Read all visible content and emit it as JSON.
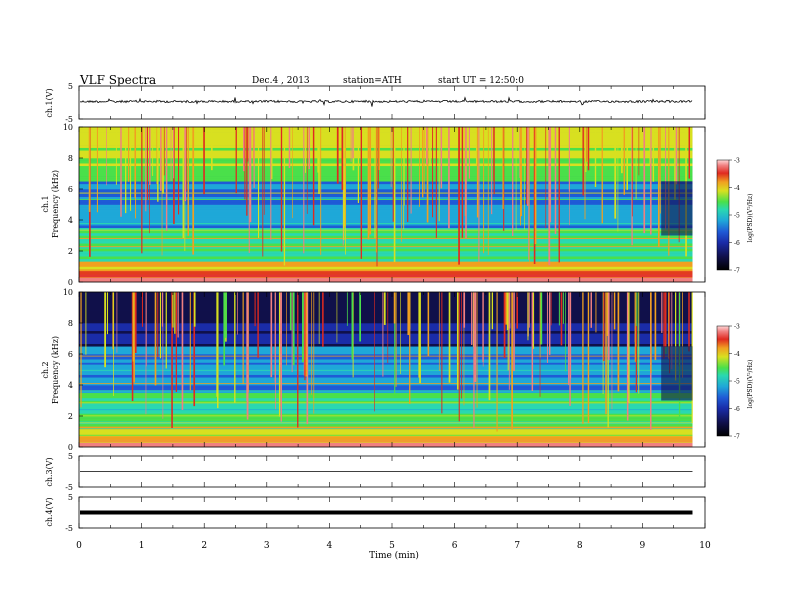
{
  "header": {
    "title": "VLF  Spectra",
    "date": "Dec.4  , 2013",
    "station": "station=ATH",
    "start": "start  UT  =    12:50:0"
  },
  "chart_data": [
    {
      "type": "line",
      "panel": "ch1-waveform",
      "ylabel": "ch.1(V)",
      "yticks": [
        "5",
        "-5"
      ],
      "ylim": [
        -5,
        5
      ],
      "description_values": "noisy trace near +0.3 V with spikes",
      "color": "#000000"
    },
    {
      "type": "heatmap",
      "panel": "ch1-spectrogram",
      "ylabel_top": "ch.1",
      "ylabel": "Frequency  (kHz)",
      "yticks": [
        "0",
        "2",
        "4",
        "6",
        "8",
        "10"
      ],
      "ylim": [
        0,
        10
      ],
      "xlim": [
        0,
        10
      ],
      "data_end_min": 9.8,
      "colorbar": {
        "label": "log(PSD)(V²/Hz)",
        "ticks": [
          "-3",
          "-4",
          "-5",
          "-6",
          "-7"
        ],
        "range": [
          -7,
          -3
        ]
      }
    },
    {
      "type": "heatmap",
      "panel": "ch2-spectrogram",
      "ylabel_top": "ch.2",
      "ylabel": "Frequency  (kHz)",
      "yticks": [
        "0",
        "2",
        "4",
        "6",
        "8",
        "10"
      ],
      "ylim": [
        0,
        10
      ],
      "xlim": [
        0,
        10
      ],
      "data_end_min": 9.8,
      "colorbar": {
        "label": "log(PSD)(V²/Hz)",
        "ticks": [
          "-3",
          "-4",
          "-5",
          "-6",
          "-7"
        ],
        "range": [
          -7,
          -3
        ]
      }
    },
    {
      "type": "line",
      "panel": "ch3-waveform",
      "ylabel": "ch.3(V)",
      "yticks": [
        "5",
        "-5"
      ],
      "ylim": [
        -5,
        5
      ],
      "level": 0
    },
    {
      "type": "line",
      "panel": "ch4-waveform",
      "ylabel": "ch.4(V)",
      "yticks": [
        "5",
        "-5"
      ],
      "ylim": [
        -5,
        5
      ],
      "level": 0
    }
  ],
  "x_axis": {
    "label": "Time  (min)",
    "ticks": [
      "0",
      "1",
      "2",
      "3",
      "4",
      "5",
      "6",
      "7",
      "8",
      "9",
      "10"
    ],
    "range": [
      0,
      10
    ]
  },
  "colors": {
    "colormap": [
      "#000000",
      "#10104a",
      "#1a2ca8",
      "#1f5bd6",
      "#1fa8d8",
      "#2ad8b0",
      "#4ae04a",
      "#d8e020",
      "#f0a020",
      "#e02a20",
      "#f08080",
      "#ffd8d8"
    ]
  }
}
